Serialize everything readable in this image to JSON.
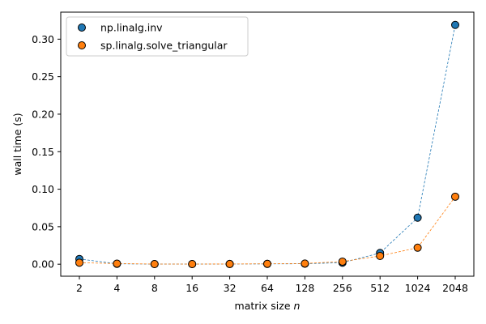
{
  "chart_data": {
    "type": "scatter",
    "xlabel": "matrix size",
    "xlabel_var": "n",
    "ylabel": "wall time (s)",
    "x_scale": "log2",
    "categories": [
      "2",
      "4",
      "8",
      "16",
      "32",
      "64",
      "128",
      "256",
      "512",
      "1024",
      "2048"
    ],
    "ylim": [
      -0.016,
      0.336
    ],
    "yticks": [
      0.0,
      0.05,
      0.1,
      0.15,
      0.2,
      0.25,
      0.3
    ],
    "ytick_labels": [
      "0.00",
      "0.05",
      "0.10",
      "0.15",
      "0.20",
      "0.25",
      "0.30"
    ],
    "grid": false,
    "legend_position": "top-left",
    "connect_points": "dashed",
    "series": [
      {
        "name": "np.linalg.inv",
        "color": "#1f77b4",
        "values": [
          0.007,
          0.0005,
          0.0002,
          0.0002,
          0.0003,
          0.0004,
          0.0006,
          0.002,
          0.015,
          0.062,
          0.319
        ]
      },
      {
        "name": "sp.linalg.solve_triangular",
        "color": "#ff7f0e",
        "values": [
          0.002,
          0.0008,
          0.0002,
          0.0002,
          0.0003,
          0.0005,
          0.0009,
          0.0035,
          0.011,
          0.022,
          0.09
        ]
      }
    ]
  }
}
